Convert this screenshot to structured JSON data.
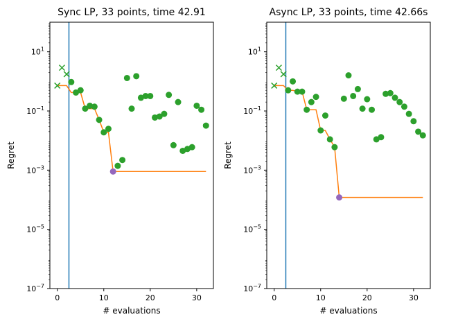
{
  "chart_data": [
    {
      "type": "scatter",
      "title": "Sync LP, 33 points, time 42.91",
      "xlabel": "# evaluations",
      "ylabel": "Regret",
      "yscale": "log",
      "xlim": [
        -1.6,
        33.6
      ],
      "ylim": [
        1e-07,
        100
      ],
      "xticks": [
        0,
        10,
        20,
        30
      ],
      "xtick_labels": [
        "0",
        "10",
        "20",
        "30"
      ],
      "yticks": [
        1e-07,
        1e-05,
        0.001,
        0.1,
        10
      ],
      "ytick_labels": [
        {
          "base": "10",
          "exp": "−7"
        },
        {
          "base": "10",
          "exp": "−5"
        },
        {
          "base": "10",
          "exp": "−3"
        },
        {
          "base": "10",
          "exp": "−1"
        },
        {
          "base": "10",
          "exp": "1"
        }
      ],
      "grid": false,
      "vline_x": 2.5,
      "initial_points": {
        "marker": "x",
        "x": [
          0,
          1,
          2
        ],
        "y": [
          0.72,
          2.9,
          1.75
        ]
      },
      "evaluations": {
        "marker": "o",
        "x": [
          3,
          4,
          5,
          6,
          7,
          8,
          9,
          10,
          11,
          13,
          14,
          15,
          16,
          17,
          18,
          19,
          20,
          21,
          22,
          23,
          24,
          25,
          26,
          27,
          28,
          29,
          30,
          31,
          32
        ],
        "y": [
          0.95,
          0.42,
          0.5,
          0.12,
          0.15,
          0.14,
          0.05,
          0.019,
          0.025,
          0.0014,
          0.0022,
          1.3,
          0.12,
          1.5,
          0.28,
          0.32,
          0.32,
          0.06,
          0.065,
          0.08,
          0.35,
          0.007,
          0.2,
          0.0045,
          0.0052,
          0.006,
          0.15,
          0.11,
          0.032
        ]
      },
      "best_point": {
        "x": 12,
        "y": 0.0009
      },
      "best_so_far": {
        "x": [
          0,
          2,
          3,
          4,
          5,
          6,
          7,
          8,
          9,
          10,
          11,
          12,
          32
        ],
        "y": [
          0.72,
          0.72,
          0.42,
          0.42,
          0.42,
          0.12,
          0.12,
          0.12,
          0.05,
          0.019,
          0.019,
          0.0009,
          0.0009
        ]
      },
      "colors": {
        "vline": "#1f77b4",
        "points": "#2ca02c",
        "line": "#ff7f0e",
        "best": "#9467bd"
      }
    },
    {
      "type": "scatter",
      "title": "Async LP, 33 points, time 42.66s",
      "xlabel": "# evaluations",
      "ylabel": "Regret",
      "yscale": "log",
      "xlim": [
        -1.6,
        33.6
      ],
      "ylim": [
        1e-07,
        100
      ],
      "xticks": [
        0,
        10,
        20,
        30
      ],
      "xtick_labels": [
        "0",
        "10",
        "20",
        "30"
      ],
      "yticks": [
        1e-07,
        1e-05,
        0.001,
        0.1,
        10
      ],
      "ytick_labels": [
        {
          "base": "10",
          "exp": "−7"
        },
        {
          "base": "10",
          "exp": "−5"
        },
        {
          "base": "10",
          "exp": "−3"
        },
        {
          "base": "10",
          "exp": "−1"
        },
        {
          "base": "10",
          "exp": "1"
        }
      ],
      "grid": false,
      "vline_x": 2.5,
      "initial_points": {
        "marker": "x",
        "x": [
          0,
          1,
          2
        ],
        "y": [
          0.72,
          2.9,
          1.75
        ]
      },
      "evaluations": {
        "marker": "o",
        "x": [
          3,
          4,
          5,
          6,
          7,
          8,
          9,
          10,
          11,
          12,
          13,
          15,
          16,
          17,
          18,
          19,
          20,
          21,
          22,
          23,
          24,
          25,
          26,
          27,
          28,
          29,
          30,
          31,
          32
        ],
        "y": [
          0.5,
          1.0,
          0.45,
          0.45,
          0.11,
          0.2,
          0.3,
          0.022,
          0.07,
          0.011,
          0.006,
          0.26,
          1.6,
          0.32,
          0.55,
          0.12,
          0.25,
          0.11,
          0.011,
          0.013,
          0.38,
          0.4,
          0.28,
          0.2,
          0.14,
          0.08,
          0.045,
          0.02,
          0.015
        ]
      },
      "best_point": {
        "x": 14,
        "y": 0.00012
      },
      "best_so_far": {
        "x": [
          0,
          2,
          3,
          4,
          5,
          6,
          7,
          8,
          9,
          10,
          11,
          12,
          13,
          14,
          32
        ],
        "y": [
          0.72,
          0.72,
          0.5,
          0.5,
          0.45,
          0.45,
          0.11,
          0.11,
          0.11,
          0.022,
          0.022,
          0.011,
          0.006,
          0.00012,
          0.00012
        ]
      },
      "colors": {
        "vline": "#1f77b4",
        "points": "#2ca02c",
        "line": "#ff7f0e",
        "best": "#9467bd"
      }
    }
  ]
}
